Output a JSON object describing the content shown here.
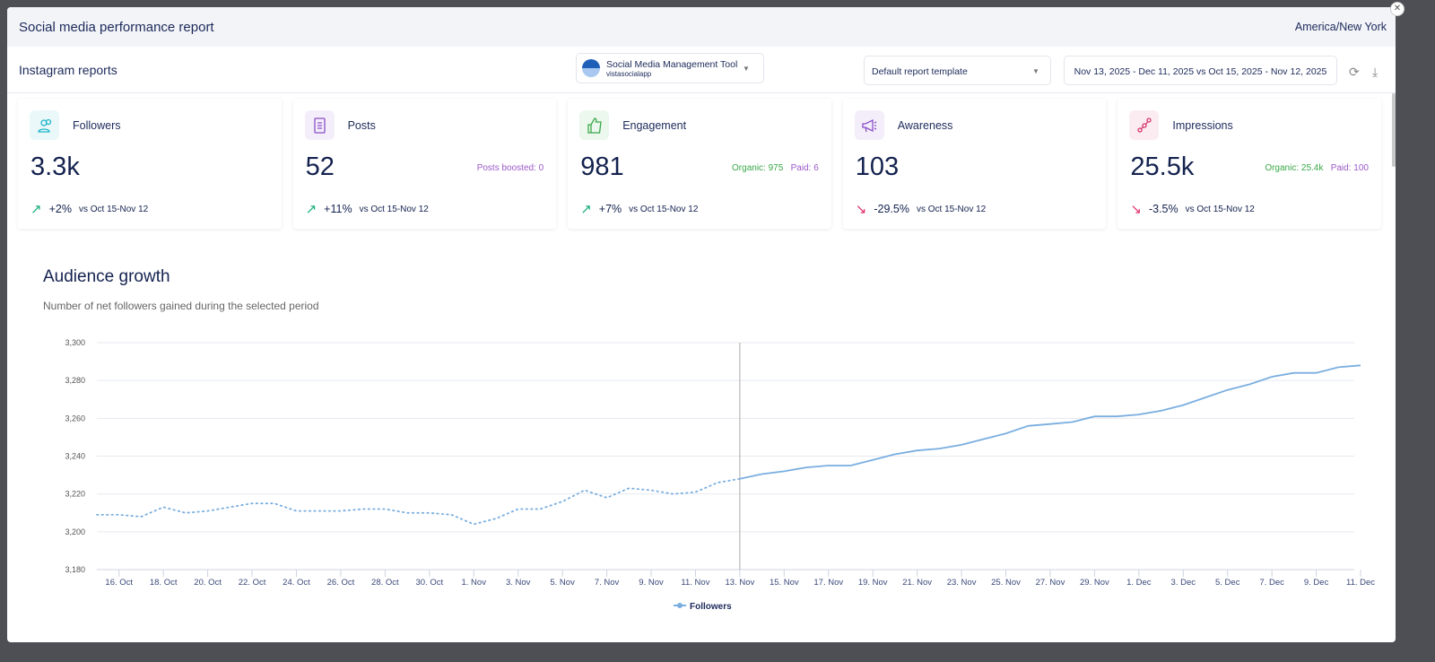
{
  "header": {
    "title": "Social media performance report",
    "timezone": "America/New York"
  },
  "toolbar": {
    "label": "Instagram reports",
    "profile_name": "Social Media Management Tool",
    "profile_handle": "vistasocialapp",
    "template": "Default report template",
    "date_range": "Nov 13, 2025 - Dec 11, 2025 vs Oct 15, 2025 - Nov 12, 2025"
  },
  "cards": [
    {
      "name": "Followers",
      "value": "3.3k",
      "change": "+2%",
      "trend": "up",
      "compare": "vs Oct 15-Nov 12",
      "icon": "followers-icon",
      "color": "#1fb5c9"
    },
    {
      "name": "Posts",
      "value": "52",
      "extra": "Posts boosted: 0",
      "change": "+11%",
      "trend": "up",
      "compare": "vs Oct 15-Nov 12",
      "icon": "document-icon",
      "color": "#8a4fc9"
    },
    {
      "name": "Engagement",
      "value": "981",
      "organic": "Organic: 975",
      "paid": "Paid: 6",
      "change": "+7%",
      "trend": "up",
      "compare": "vs Oct 15-Nov 12",
      "icon": "thumbs-up-icon",
      "color": "#3aa84a"
    },
    {
      "name": "Awareness",
      "value": "103",
      "change": "-29.5%",
      "trend": "down",
      "compare": "vs Oct 15-Nov 12",
      "icon": "megaphone-icon",
      "color": "#8a4fc9"
    },
    {
      "name": "Impressions",
      "value": "25.5k",
      "organic": "Organic: 25.4k",
      "paid": "Paid: 100",
      "change": "-3.5%",
      "trend": "down",
      "compare": "vs Oct 15-Nov 12",
      "icon": "impressions-icon",
      "color": "#d6336c"
    }
  ],
  "colors": {
    "up": "#1aae7a",
    "down": "#e0306e",
    "organic": "#3aa84a",
    "paid": "#9b59c9",
    "line": "#7aaee0"
  },
  "section": {
    "title": "Audience growth",
    "subtitle": "Number of net followers gained during the selected period"
  },
  "chart_data": {
    "type": "line",
    "ylim": [
      3180,
      3300
    ],
    "yticks": [
      "3,180",
      "3,200",
      "3,220",
      "3,240",
      "3,260",
      "3,280",
      "3,300"
    ],
    "xticks": [
      "16. Oct",
      "18. Oct",
      "20. Oct",
      "22. Oct",
      "24. Oct",
      "26. Oct",
      "28. Oct",
      "30. Oct",
      "1. Nov",
      "3. Nov",
      "5. Nov",
      "7. Nov",
      "9. Nov",
      "11. Nov",
      "13. Nov",
      "15. Nov",
      "17. Nov",
      "19. Nov",
      "21. Nov",
      "23. Nov",
      "25. Nov",
      "27. Nov",
      "29. Nov",
      "1. Dec",
      "3. Dec",
      "5. Dec",
      "7. Dec",
      "9. Dec",
      "11. Dec"
    ],
    "x_start": "15. Oct",
    "grid": true,
    "legend": "bottom-center",
    "previous_period": {
      "style": "dotted",
      "values": [
        3209,
        3209,
        3208,
        3213,
        3210,
        3211,
        3213,
        3215,
        3215,
        3211,
        3211,
        3211,
        3212,
        3212,
        3210,
        3210,
        3209,
        3204,
        3207,
        3212,
        3212,
        3216,
        3222,
        3218,
        3223,
        3222,
        3220,
        3221,
        3226
      ]
    },
    "series": [
      {
        "name": "Followers",
        "style": "solid",
        "values": [
          3228,
          3230.5,
          3232,
          3234,
          3235,
          3235,
          3238,
          3241,
          3243,
          3244,
          3246,
          3249,
          3252,
          3256,
          3257,
          3258,
          3261,
          3261,
          3262,
          3264,
          3267,
          3271,
          3275,
          3278,
          3282,
          3284,
          3284,
          3287,
          3288
        ]
      }
    ]
  }
}
